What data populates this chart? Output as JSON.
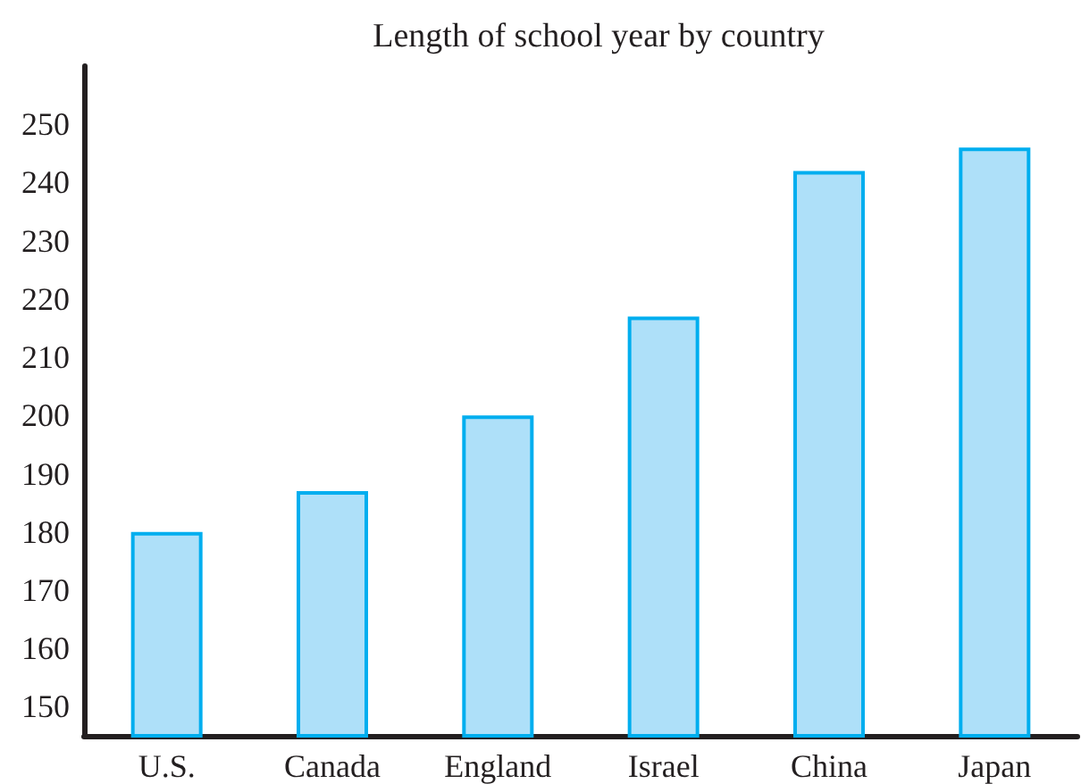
{
  "chart_data": {
    "type": "bar",
    "title": "Length of school year by country",
    "categories": [
      "U.S.",
      "Canada",
      "England",
      "Israel",
      "China",
      "Japan"
    ],
    "values": [
      180,
      187,
      200,
      217,
      242,
      246
    ],
    "color": "#aee0f9",
    "ylim": [
      145,
      260
    ],
    "yticks": [
      150,
      160,
      170,
      180,
      190,
      200,
      210,
      220,
      230,
      240,
      250
    ],
    "grid": false
  }
}
